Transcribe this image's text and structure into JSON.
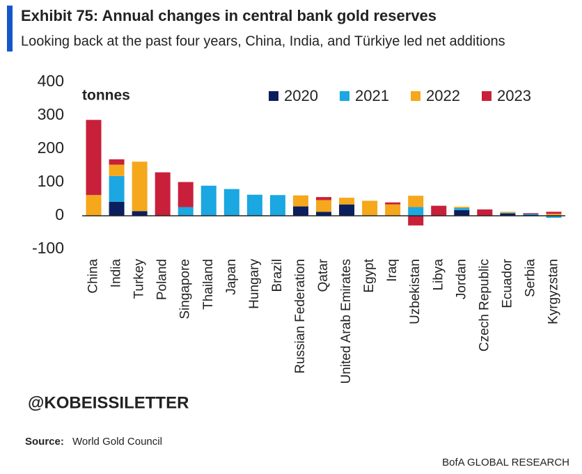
{
  "chart_data": {
    "type": "stacked_bar",
    "title": "Exhibit 75: Annual changes in central bank gold reserves",
    "subtitle": "Looking back at the past four years, China, India, and Türkiye led net additions",
    "y_label": "tonnes",
    "categories": [
      "China",
      "India",
      "Turkey",
      "Poland",
      "Singapore",
      "Thailand",
      "Japan",
      "Hungary",
      "Brazil",
      "Russian Federation",
      "Qatar",
      "United Arab Emirates",
      "Egypt",
      "Iraq",
      "Uzbekistan",
      "Libya",
      "Jordan",
      "Czech Republic",
      "Ecuador",
      "Serbia",
      "Kyrgyzstan"
    ],
    "series": [
      {
        "name": "2020",
        "color": "#0b1f5e",
        "values": [
          0,
          42,
          14,
          0,
          0,
          0,
          0,
          0,
          0,
          28,
          12,
          34,
          0,
          0,
          0,
          0,
          17,
          0,
          7,
          3,
          0
        ]
      },
      {
        "name": "2021",
        "color": "#1ba7e1",
        "values": [
          0,
          77,
          0,
          0,
          26,
          90,
          80,
          63,
          62,
          0,
          0,
          0,
          0,
          0,
          26,
          0,
          6,
          0,
          2,
          3,
          -6
        ]
      },
      {
        "name": "2022",
        "color": "#f5a81c",
        "values": [
          62,
          34,
          148,
          0,
          0,
          0,
          0,
          0,
          0,
          33,
          35,
          20,
          45,
          34,
          34,
          0,
          4,
          0,
          3,
          0,
          6
        ]
      },
      {
        "name": "2023",
        "color": "#c8203a",
        "values": [
          225,
          16,
          0,
          130,
          75,
          0,
          0,
          0,
          0,
          0,
          9,
          0,
          0,
          6,
          -29,
          30,
          0,
          19,
          0,
          2,
          6
        ]
      }
    ],
    "ylim": [
      -100,
      400
    ],
    "yticks": [
      -100,
      0,
      100,
      200,
      300,
      400
    ],
    "grid": false
  },
  "watermark": "@KOBEISSILETTER",
  "source_label": "Source:",
  "source": "World Gold Council",
  "footer": "BofA GLOBAL RESEARCH"
}
